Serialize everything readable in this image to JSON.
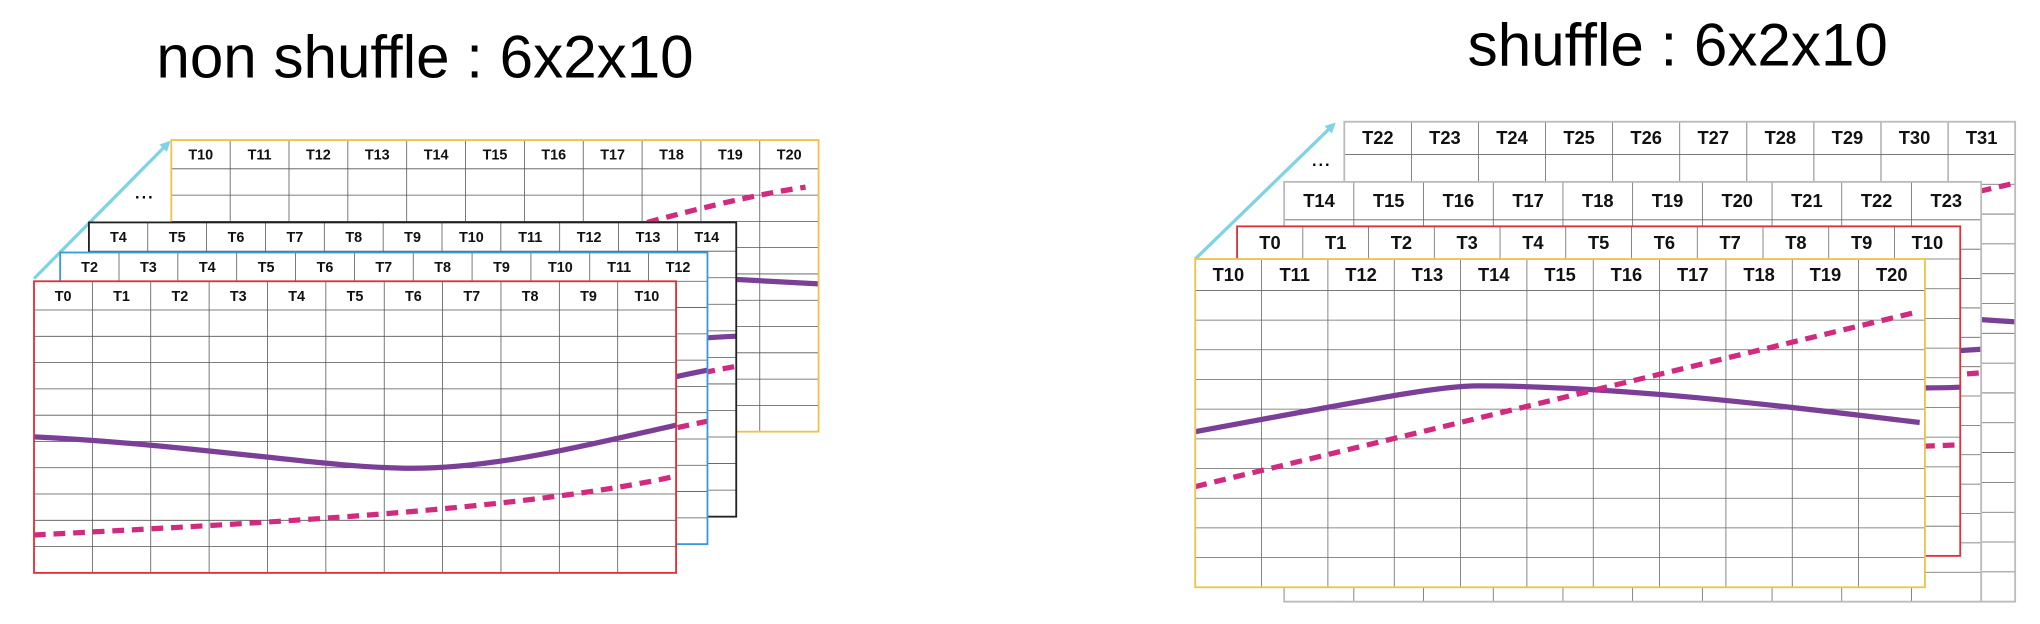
{
  "panels": [
    {
      "title": "non shuffle : 6x2x10",
      "ellipsis": "...",
      "layers": [
        {
          "headers": [
            "T10",
            "T11",
            "T12",
            "T13",
            "T14",
            "T15",
            "T16",
            "T17",
            "T18",
            "T19",
            "T20"
          ]
        },
        {
          "headers": [
            "T4",
            "T5",
            "T6",
            "T7",
            "T8",
            "T9",
            "T10",
            "T11",
            "T12",
            "T13",
            "T14"
          ]
        },
        {
          "headers": [
            "T2",
            "T3",
            "T4",
            "T5",
            "T6",
            "T7",
            "T8",
            "T9",
            "T10",
            "T11",
            "T12"
          ]
        },
        {
          "headers": [
            "T0",
            "T1",
            "T2",
            "T3",
            "T4",
            "T5",
            "T6",
            "T7",
            "T8",
            "T9",
            "T10"
          ]
        }
      ]
    },
    {
      "title": "shuffle : 6x2x10",
      "ellipsis": "...",
      "layers": [
        {
          "headers": [
            "T22",
            "T23",
            "T24",
            "T25",
            "T26",
            "T27",
            "T28",
            "T29",
            "T30",
            "T31"
          ]
        },
        {
          "headers": [
            "T14",
            "T15",
            "T16",
            "T17",
            "T18",
            "T19",
            "T20",
            "T21",
            "T22",
            "T23"
          ]
        },
        {
          "headers": [
            "T0",
            "T1",
            "T2",
            "T3",
            "T4",
            "T5",
            "T6",
            "T7",
            "T8",
            "T9",
            "T10"
          ]
        },
        {
          "headers": [
            "T10",
            "T11",
            "T12",
            "T13",
            "T14",
            "T15",
            "T16",
            "T17",
            "T18",
            "T19",
            "T20"
          ]
        }
      ]
    }
  ]
}
